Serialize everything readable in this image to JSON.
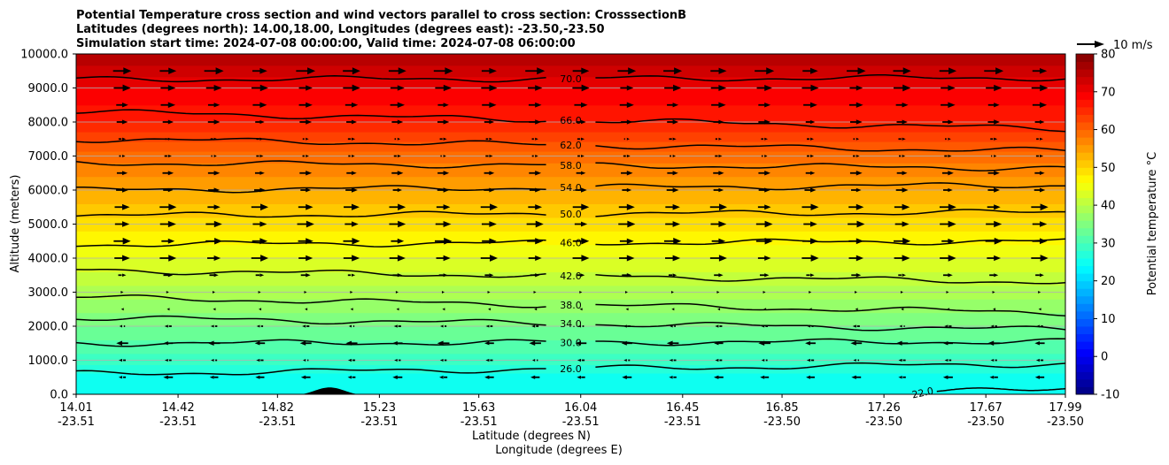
{
  "title_lines": [
    "Potential Temperature cross section and wind vectors parallel to cross section: CrosssectionB",
    "Latitudes (degrees north): 14.00,18.00, Longitudes (degrees east): -23.50,-23.50",
    "Simulation start time: 2024-07-08 00:00:00, Valid time: 2024-07-08 06:00:00"
  ],
  "quiver_key_label": "10 m/s",
  "chart_data": {
    "type": "heatmap",
    "ylabel": "Altitude (meters)",
    "xlabel_lat": "Latitude (degrees N)",
    "xlabel_lon": "Longitude (degrees E)",
    "ylim": [
      0,
      10000
    ],
    "y_ticks": [
      "0.0",
      "1000.0",
      "2000.0",
      "3000.0",
      "4000.0",
      "5000.0",
      "6000.0",
      "7000.0",
      "8000.0",
      "9000.0",
      "10000.0"
    ],
    "x_ticks": [
      {
        "lat": "14.01",
        "lon": "-23.51"
      },
      {
        "lat": "14.42",
        "lon": "-23.51"
      },
      {
        "lat": "14.82",
        "lon": "-23.51"
      },
      {
        "lat": "15.23",
        "lon": "-23.51"
      },
      {
        "lat": "15.63",
        "lon": "-23.51"
      },
      {
        "lat": "16.04",
        "lon": "-23.51"
      },
      {
        "lat": "16.45",
        "lon": "-23.51"
      },
      {
        "lat": "16.85",
        "lon": "-23.50"
      },
      {
        "lat": "17.26",
        "lon": "-23.50"
      },
      {
        "lat": "17.67",
        "lon": "-23.50"
      },
      {
        "lat": "17.99",
        "lon": "-23.50"
      }
    ],
    "grid": "horizontal",
    "colorbar": {
      "label": "Potential temperature $^\\circ$C",
      "range": [
        -10,
        80
      ],
      "ticks": [
        "-10",
        "0",
        "10",
        "20",
        "30",
        "40",
        "50",
        "60",
        "70",
        "80"
      ],
      "colormap": "jet"
    },
    "theta_profile": [
      {
        "alt": 0,
        "theta": 24
      },
      {
        "alt": 500,
        "theta": 25
      },
      {
        "alt": 1000,
        "theta": 29
      },
      {
        "alt": 2000,
        "theta": 34
      },
      {
        "alt": 3000,
        "theta": 39
      },
      {
        "alt": 4000,
        "theta": 44
      },
      {
        "alt": 5000,
        "theta": 49
      },
      {
        "alt": 6000,
        "theta": 54
      },
      {
        "alt": 7000,
        "theta": 59
      },
      {
        "alt": 8000,
        "theta": 66
      },
      {
        "alt": 9000,
        "theta": 70
      },
      {
        "alt": 10000,
        "theta": 76
      }
    ],
    "contours": [
      {
        "level": "22.0",
        "alt_left": 50,
        "alt_right": 200,
        "x_start": 0.87
      },
      {
        "level": "26.0",
        "alt_left": 600,
        "alt_right": 900
      },
      {
        "level": "30.0",
        "alt_left": 1500,
        "alt_right": 1550
      },
      {
        "level": "34.0",
        "alt_left": 2250,
        "alt_right": 1900
      },
      {
        "level": "38.0",
        "alt_left": 2850,
        "alt_right": 2400
      },
      {
        "level": "42.0",
        "alt_left": 3650,
        "alt_right": 3300
      },
      {
        "level": "46.0",
        "alt_left": 4400,
        "alt_right": 4500
      },
      {
        "level": "50.0",
        "alt_left": 5250,
        "alt_right": 5350
      },
      {
        "level": "54.0",
        "alt_left": 6000,
        "alt_right": 6150
      },
      {
        "level": "58.0",
        "alt_left": 6800,
        "alt_right": 6650
      },
      {
        "level": "62.0",
        "alt_left": 7500,
        "alt_right": 7150
      },
      {
        "level": "66.0",
        "alt_left": 8300,
        "alt_right": 7800
      },
      {
        "level": "70.0",
        "alt_left": 9250,
        "alt_right": 9300
      }
    ],
    "wind_rows": [
      {
        "alt": 500,
        "speed": -4
      },
      {
        "alt": 1000,
        "speed": -3
      },
      {
        "alt": 1500,
        "speed": -5
      },
      {
        "alt": 2000,
        "speed": -3
      },
      {
        "alt": 2500,
        "speed": -1
      },
      {
        "alt": 3000,
        "speed": 1
      },
      {
        "alt": 3500,
        "speed": 4
      },
      {
        "alt": 4000,
        "speed": 7
      },
      {
        "alt": 4500,
        "speed": 7
      },
      {
        "alt": 5000,
        "speed": 7
      },
      {
        "alt": 5500,
        "speed": 7
      },
      {
        "alt": 6000,
        "speed": 5
      },
      {
        "alt": 6500,
        "speed": 5
      },
      {
        "alt": 7000,
        "speed": 3
      },
      {
        "alt": 7500,
        "speed": 3
      },
      {
        "alt": 8000,
        "speed": 5
      },
      {
        "alt": 8500,
        "speed": 6
      },
      {
        "alt": 9000,
        "speed": 7
      },
      {
        "alt": 9500,
        "speed": 8
      }
    ],
    "terrain_peak": {
      "lat": 15.03,
      "alt": 200
    }
  }
}
